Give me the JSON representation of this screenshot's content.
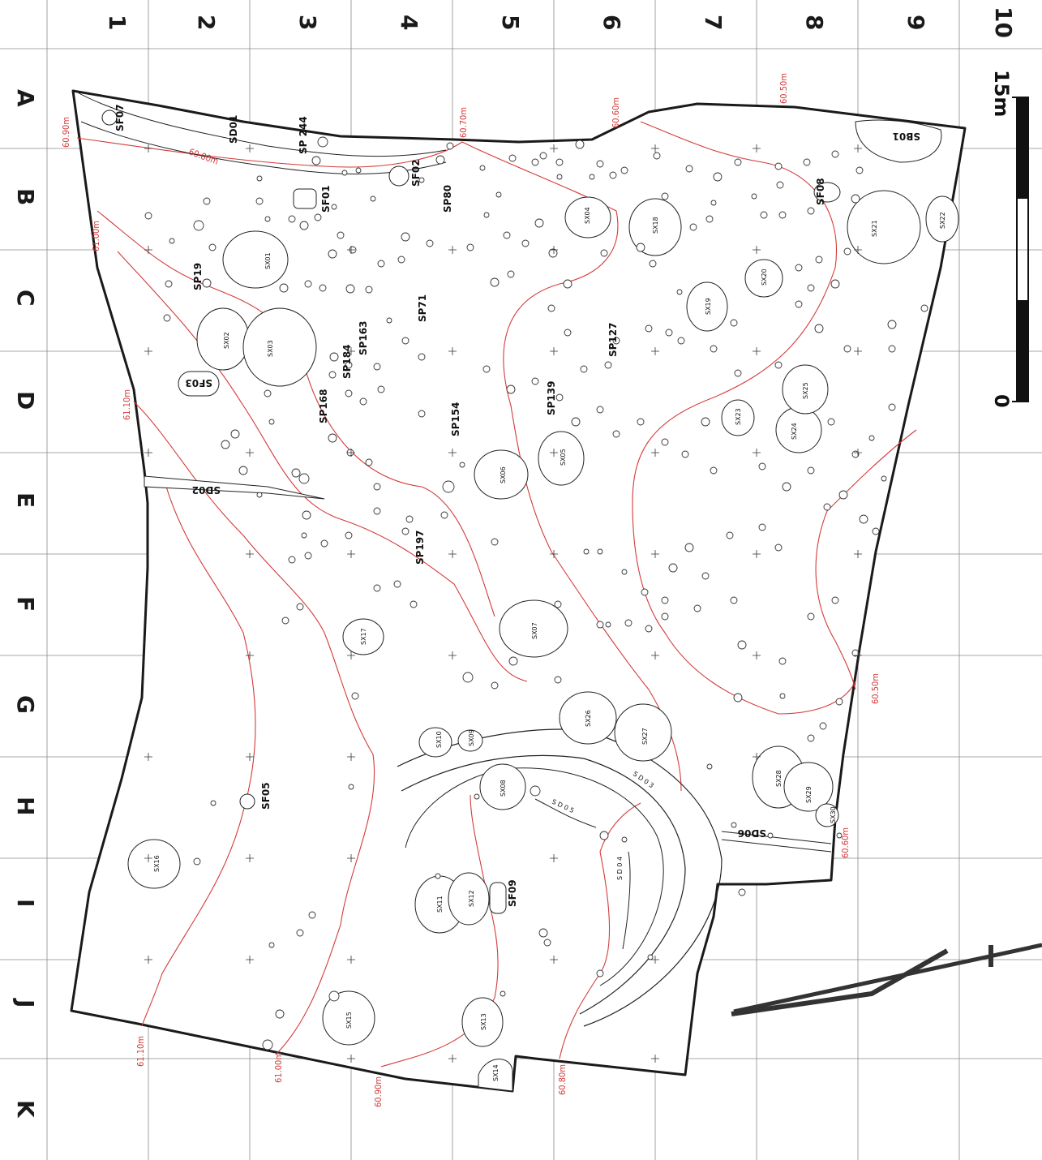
{
  "grid": {
    "columns": [
      "1",
      "2",
      "3",
      "4",
      "5",
      "6",
      "7",
      "8",
      "9",
      "10"
    ],
    "rows": [
      "A",
      "B",
      "C",
      "D",
      "E",
      "F",
      "G",
      "H",
      "I",
      "J",
      "K"
    ]
  },
  "scale": {
    "zero": "0",
    "max": "15m"
  },
  "elevations": [
    "60.90m",
    "60.80m",
    "61.00m",
    "61.10m",
    "60.70m",
    "60.60m",
    "60.50m",
    "60.50m",
    "60.60m",
    "61.10m",
    "61.00m",
    "60.90m",
    "60.80m"
  ],
  "features": {
    "SF07": "SF07",
    "SD01": "SD01",
    "SP244": "SP\n244",
    "SF02": "SF02",
    "SF01": "SF01",
    "SP80": "SP80",
    "SP19": "SP19",
    "SX01": "SX01",
    "SX02": "SX02",
    "SX03": "SX03",
    "SF03": "SF03",
    "SP184": "SP184",
    "SP163": "SP163",
    "SP71": "SP71",
    "SP168": "SP168",
    "SP154": "SP154",
    "SP139": "SP139",
    "SP127": "SP127",
    "SX04": "SX04",
    "SX18": "SX18",
    "SX19": "SX19",
    "SX20": "SX20",
    "SF08": "SF08",
    "SX21": "SX21",
    "SX22": "SX22",
    "SB01": "SB01",
    "SX23": "SX23",
    "SX24": "SX24",
    "SX25": "SX25",
    "SX05": "SX05",
    "SX06": "SX06",
    "SD02": "SD02",
    "SP197": "SP197",
    "SX07": "SX07",
    "SX17": "SX17",
    "SX26": "SX26",
    "SX27": "SX27",
    "SX10": "SX10",
    "SX09": "SX09",
    "SX08": "SX08",
    "SD03": "S D 0 3",
    "SD05": "S D 0 5",
    "SF05": "SF05",
    "SX28": "SX28",
    "SX29": "SX29",
    "SX30": "SX30",
    "SD06": "SD06",
    "SX16": "SX16",
    "SX11": "SX11",
    "SX12": "SX12",
    "SF09": "SF09",
    "SD04": "S D 0 4",
    "SX15": "SX15",
    "SX13": "SX13",
    "SX14": "SX14"
  },
  "colors": {
    "contour": "#d43a3a",
    "grid": "#8a8a8a",
    "ink": "#1a1a1a"
  }
}
